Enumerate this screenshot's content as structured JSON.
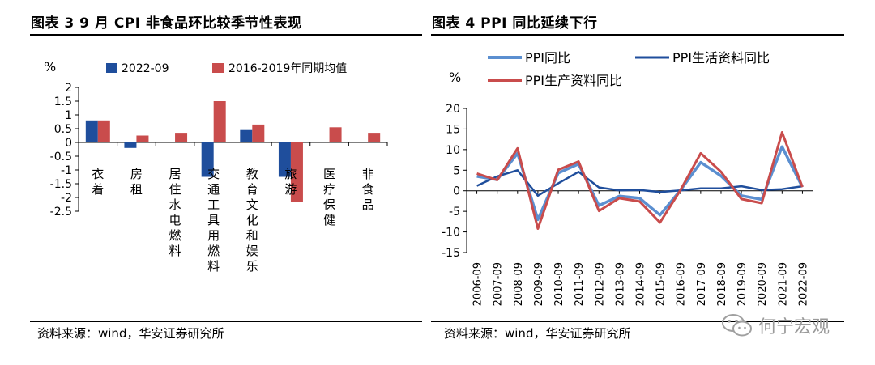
{
  "left_panel": {
    "title": "图表 3 9 月 CPI 非食品环比较季节性表现",
    "source": "资料来源：wind，华安证券研究所"
  },
  "right_panel": {
    "title": "图表 4 PPI 同比延续下行",
    "source": "资料来源：wind，华安证券研究所"
  },
  "watermark": {
    "text": "何宁宏观",
    "icon": "wechat-icon"
  },
  "colors": {
    "blue": "#1f4e9c",
    "red": "#c94c4c",
    "lightblue": "#5b8fd0"
  },
  "chart_data": [
    {
      "type": "bar",
      "unit_label": "%",
      "categories": [
        "衣着",
        "房租",
        "居住水电燃料",
        "交通工具用燃料",
        "教育文化和娱乐",
        "旅游",
        "医疗保健",
        "非食品"
      ],
      "series": [
        {
          "name": "2022-09",
          "values": [
            0.8,
            -0.2,
            0,
            -1.25,
            0.45,
            -1.25,
            0,
            0
          ]
        },
        {
          "name": "2016-2019年同期均值",
          "values": [
            0.8,
            0.25,
            0.35,
            1.5,
            0.65,
            -2.15,
            0.55,
            0.35
          ]
        }
      ],
      "yticks": [
        "2",
        "1.5",
        "1",
        "0.5",
        "0",
        "-0.5",
        "-1",
        "-1.5",
        "-2",
        "-2.5"
      ],
      "ylim": [
        -2.5,
        2
      ]
    },
    {
      "type": "line",
      "unit_label": "%",
      "x": [
        "2006-09",
        "2007-09",
        "2008-09",
        "2009-09",
        "2010-09",
        "2011-09",
        "2012-09",
        "2013-09",
        "2014-09",
        "2015-09",
        "2016-09",
        "2017-09",
        "2018-09",
        "2019-09",
        "2020-09",
        "2021-09",
        "2022-09"
      ],
      "yticks": [
        "20",
        "15",
        "10",
        "5",
        "0",
        "-5",
        "-10",
        "-15"
      ],
      "ylim": [
        -15,
        20
      ],
      "series": [
        {
          "name": "PPI同比",
          "values": [
            3.5,
            2.7,
            9.1,
            -7.0,
            4.3,
            6.5,
            -3.6,
            -1.3,
            -1.8,
            -5.9,
            0.1,
            6.9,
            3.6,
            -1.2,
            -2.1,
            10.7,
            0.9
          ]
        },
        {
          "name": "PPI生活资料同比",
          "values": [
            1.2,
            3.5,
            5.0,
            -1.2,
            1.8,
            4.6,
            0.8,
            0.1,
            0.2,
            -0.3,
            0.1,
            0.6,
            0.6,
            1.1,
            0.2,
            0.4,
            1.1
          ]
        },
        {
          "name": "PPI生产资料同比",
          "values": [
            4.2,
            2.6,
            10.3,
            -9.2,
            5.1,
            7.1,
            -4.9,
            -1.8,
            -2.6,
            -7.7,
            0.1,
            9.1,
            4.6,
            -2.0,
            -3.0,
            14.2,
            0.9
          ]
        }
      ]
    }
  ]
}
